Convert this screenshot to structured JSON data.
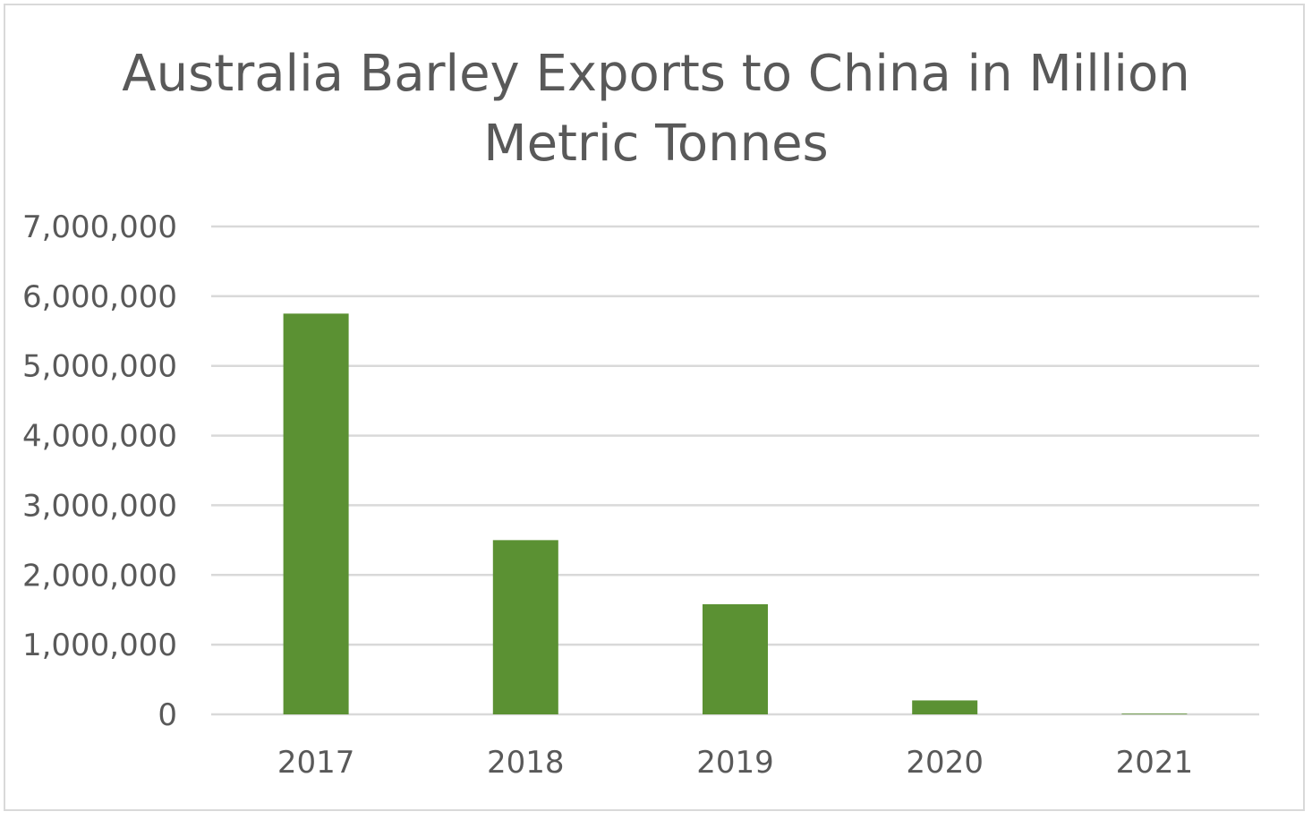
{
  "chart_data": {
    "type": "bar",
    "title_lines": [
      "Australia Barley Exports to China in Million",
      "Metric Tonnes"
    ],
    "categories": [
      "2017",
      "2018",
      "2019",
      "2020",
      "2021"
    ],
    "values": [
      5750000,
      2500000,
      1580000,
      200000,
      10000
    ],
    "y_ticks": [
      0,
      1000000,
      2000000,
      3000000,
      4000000,
      5000000,
      6000000,
      7000000
    ],
    "y_tick_labels": [
      "0",
      "1,000,000",
      "2,000,000",
      "3,000,000",
      "4,000,000",
      "5,000,000",
      "6,000,000",
      "7,000,000"
    ],
    "ylim": [
      0,
      7000000
    ],
    "grid": true,
    "legend": "none",
    "bar_color": "#5b9133",
    "grid_color": "#d9d9d9",
    "text_color": "#595959"
  }
}
